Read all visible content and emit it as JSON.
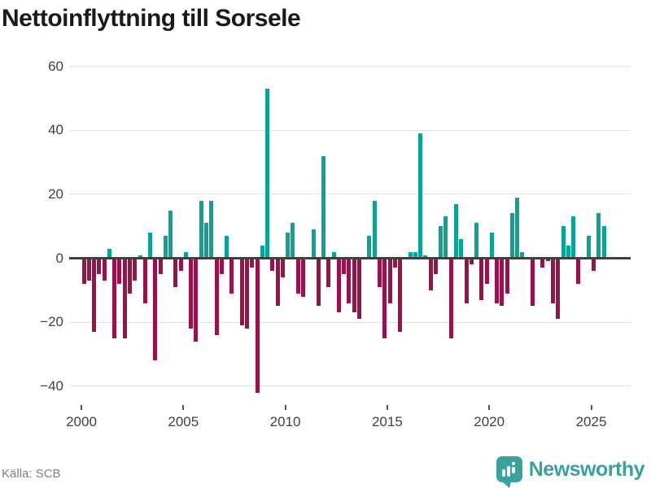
{
  "title": "Nettoinflyttning till Sorsele",
  "source": "Källa: SCB",
  "brand": {
    "name": "Newsworthy",
    "icon": "bar-chart-speech-bubble",
    "color": "#3aa09b"
  },
  "colors": {
    "positive_bar": "#0aa39a",
    "negative_bar": "#9c104b",
    "title_text": "#1a1a1a",
    "axis_text": "#404040",
    "gridline": "#e2e2e2",
    "zero_line": "#3f3f3f",
    "source_text": "#828282"
  },
  "chart_data": {
    "type": "bar",
    "title": "Nettoinflyttning till Sorsele",
    "xlabel": "",
    "ylabel": "",
    "frequency": "quarterly",
    "start_period": "2000 Q1",
    "end_period": "2025 Q3",
    "x_tick_years": [
      2000,
      2005,
      2010,
      2015,
      2020,
      2025
    ],
    "y_ticks": [
      60,
      40,
      20,
      0,
      -20,
      -40
    ],
    "ylim": [
      -46,
      65
    ],
    "grid": true,
    "legend": false,
    "series": [
      {
        "name": "Nettoinflyttning",
        "values": [
          -8,
          -7,
          -23,
          -5,
          -7,
          3,
          -25,
          -8,
          -25,
          -11,
          -7,
          1,
          -14,
          8,
          -32,
          -5,
          7,
          15,
          -9,
          -4,
          2,
          -22,
          -26,
          18,
          11,
          18,
          -24,
          -5,
          7,
          -11,
          0,
          -21,
          -22,
          -3,
          -42,
          4,
          53,
          -4,
          -15,
          -6,
          8,
          11,
          -11,
          -12,
          0,
          9,
          -15,
          32,
          -9,
          2,
          -17,
          -5,
          -14,
          -17,
          -19,
          0,
          7,
          18,
          -9,
          -25,
          -14,
          -3,
          -23,
          0,
          2,
          2,
          39,
          1,
          -10,
          -5,
          10,
          13,
          -25,
          17,
          6,
          -14,
          -2,
          11,
          -13,
          -8,
          8,
          -14,
          -15,
          -11,
          14,
          19,
          2,
          0,
          -15,
          0,
          -3,
          -1,
          -14,
          -19,
          10,
          4,
          13,
          -8,
          0,
          7,
          -4,
          14,
          10
        ]
      }
    ]
  }
}
